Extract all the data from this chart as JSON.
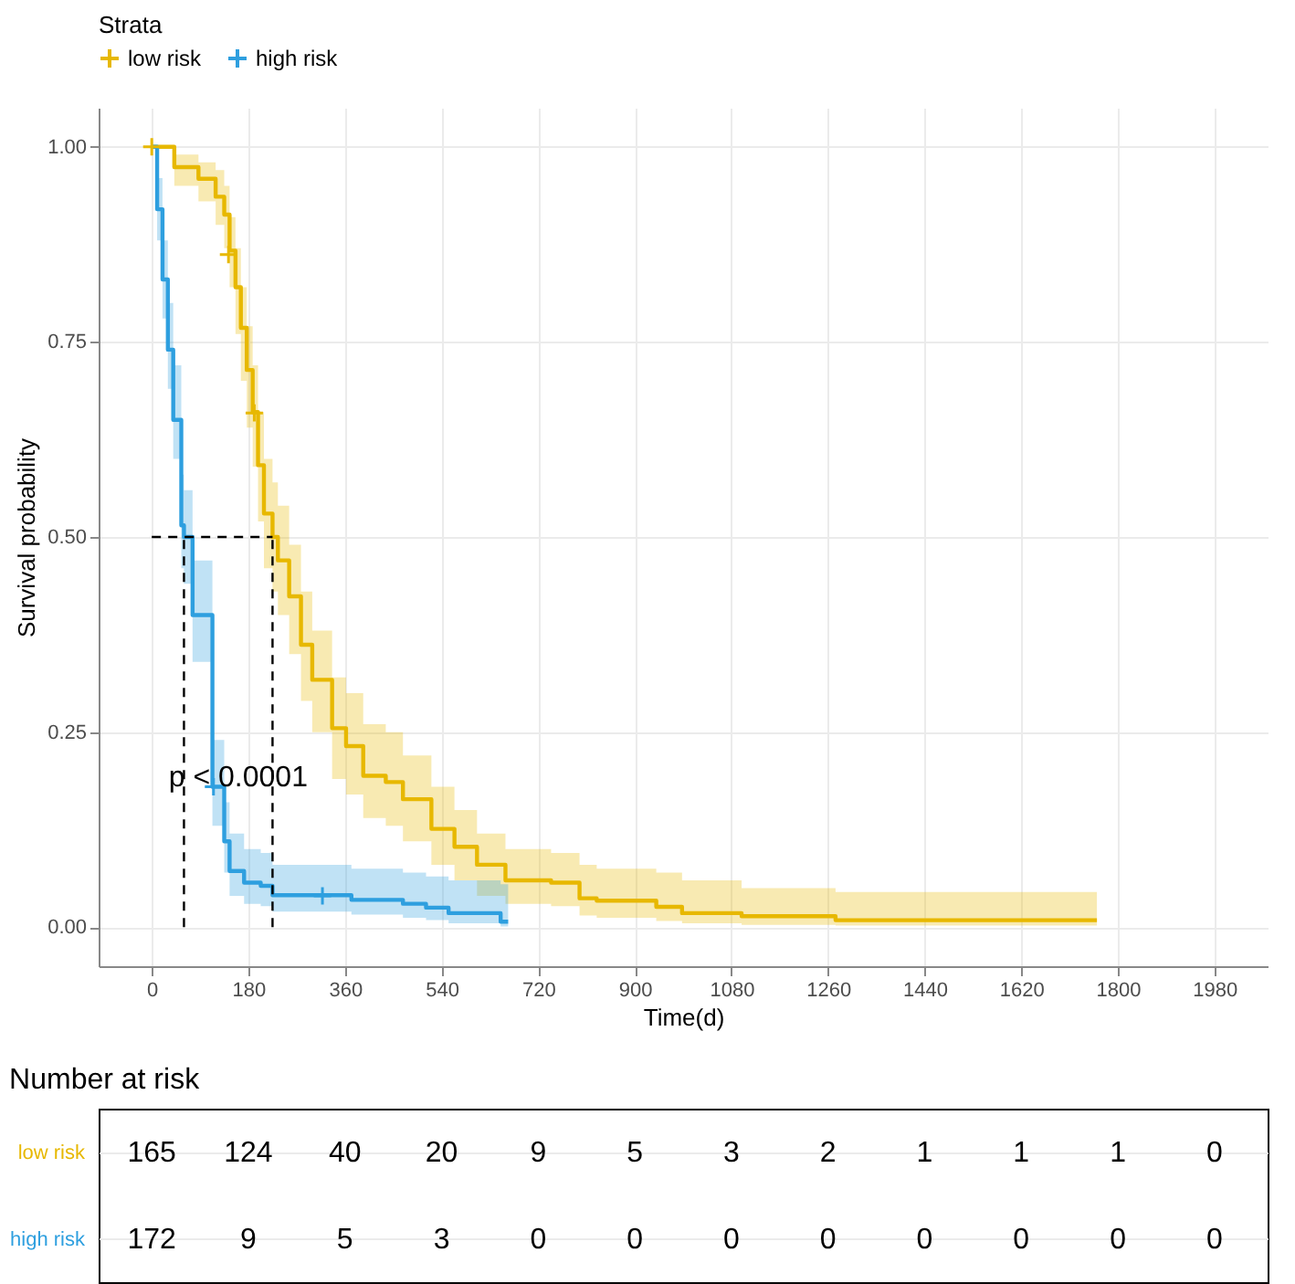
{
  "chart_data": [
    {
      "type": "step",
      "xlabel": "Time(d)",
      "ylabel": "Survival probability",
      "legend_title": "Strata",
      "legend": "top",
      "grid": true,
      "xlim": [
        -99,
        2079
      ],
      "xticks": [
        0,
        180,
        360,
        540,
        720,
        900,
        1080,
        1260,
        1440,
        1620,
        1800,
        1980
      ],
      "ylim": [
        -0.05,
        1.05
      ],
      "yticks": [
        {
          "value": 0,
          "label": "0.00"
        },
        {
          "value": 0.25,
          "label": "0.25"
        },
        {
          "value": 0.5,
          "label": "0.50"
        },
        {
          "value": 0.75,
          "label": "0.75"
        },
        {
          "value": 1,
          "label": "1.00"
        }
      ],
      "annotations": [
        "p < 0.0001"
      ],
      "series": [
        {
          "name": "low risk",
          "color": "#e7b800",
          "x": [
            0,
            42,
            87,
            119,
            135,
            145,
            156,
            166,
            177,
            188,
            198,
            209,
            225,
            235,
            256,
            278,
            299,
            336,
            362,
            394,
            436,
            468,
            521,
            564,
            606,
            659,
            744,
            797,
            829,
            940,
            988,
            1099,
            1274,
            1761
          ],
          "values": [
            1,
            0.974,
            0.959,
            0.936,
            0.913,
            0.867,
            0.82,
            0.768,
            0.714,
            0.66,
            0.592,
            0.53,
            0.5,
            0.47,
            0.424,
            0.362,
            0.317,
            0.255,
            0.232,
            0.194,
            0.186,
            0.164,
            0.126,
            0.103,
            0.08,
            0.06,
            0.057,
            0.037,
            0.034,
            0.026,
            0.018,
            0.014,
            0.009,
            0.009
          ],
          "lower": [
            1,
            0.95,
            0.93,
            0.9,
            0.87,
            0.82,
            0.76,
            0.7,
            0.64,
            0.59,
            0.52,
            0.46,
            0.43,
            0.4,
            0.35,
            0.29,
            0.25,
            0.19,
            0.17,
            0.14,
            0.13,
            0.11,
            0.08,
            0.06,
            0.04,
            0.03,
            0.027,
            0.015,
            0.012,
            0.008,
            0.005,
            0.003,
            0.002,
            0.002
          ],
          "upper": [
            1,
            0.99,
            0.98,
            0.97,
            0.95,
            0.91,
            0.87,
            0.82,
            0.77,
            0.72,
            0.66,
            0.6,
            0.57,
            0.54,
            0.49,
            0.43,
            0.38,
            0.32,
            0.3,
            0.26,
            0.25,
            0.22,
            0.18,
            0.15,
            0.12,
            0.1,
            0.095,
            0.08,
            0.075,
            0.07,
            0.06,
            0.05,
            0.045,
            0.045
          ]
        },
        {
          "name": "high risk",
          "color": "#2e9fdf",
          "x": [
            0,
            10,
            20,
            30,
            40,
            55,
            60,
            76,
            113,
            135,
            145,
            172,
            203,
            225,
            372,
            468,
            511,
            553,
            650,
            664
          ],
          "values": [
            1,
            0.92,
            0.83,
            0.74,
            0.65,
            0.515,
            0.5,
            0.4,
            0.18,
            0.11,
            0.072,
            0.057,
            0.053,
            0.041,
            0.035,
            0.03,
            0.025,
            0.018,
            0.007,
            0.007
          ],
          "lower": [
            1,
            0.88,
            0.78,
            0.69,
            0.6,
            0.46,
            0.44,
            0.34,
            0.13,
            0.07,
            0.04,
            0.03,
            0.027,
            0.02,
            0.016,
            0.012,
            0.009,
            0.005,
            0.001,
            0.001
          ],
          "upper": [
            1,
            0.96,
            0.88,
            0.8,
            0.72,
            0.58,
            0.56,
            0.47,
            0.24,
            0.16,
            0.12,
            0.1,
            0.095,
            0.08,
            0.075,
            0.07,
            0.065,
            0.06,
            0.055,
            0.055
          ]
        },
        {
          "type": "scatter",
          "marker": "cross",
          "color": "#e7b800",
          "x": [
            0,
            143,
            191
          ],
          "values": [
            1,
            0.862,
            0.659
          ]
        },
        {
          "type": "scatter",
          "marker": "cross",
          "color": "#2e9fdf",
          "x": [
            115,
            318
          ],
          "values": [
            0.18,
            0.04
          ]
        },
        {
          "type": "line",
          "line_style": "dashed",
          "color": "#000000",
          "x": [
            60,
            60
          ],
          "values": [
            0,
            0.5
          ]
        },
        {
          "type": "line",
          "line_style": "dashed",
          "color": "#000000",
          "x": [
            0,
            225
          ],
          "values": [
            0.5,
            0.5
          ]
        },
        {
          "type": "line",
          "line_style": "dashed",
          "color": "#000000",
          "x": [
            225,
            225
          ],
          "values": [
            0,
            0.5
          ]
        }
      ]
    },
    {
      "type": "heatmap",
      "title": "Number at risk",
      "data_labels": true,
      "categories": [
        null,
        null,
        null,
        null,
        null,
        null,
        null,
        null,
        null,
        null,
        null,
        null
      ],
      "y_categories": [
        "low risk",
        "high risk"
      ],
      "cells": [
        [
          165,
          124,
          40,
          20,
          9,
          5,
          3,
          2,
          1,
          1,
          1,
          0
        ],
        [
          172,
          9,
          5,
          3,
          0,
          0,
          0,
          0,
          0,
          0,
          0,
          0
        ]
      ]
    }
  ]
}
